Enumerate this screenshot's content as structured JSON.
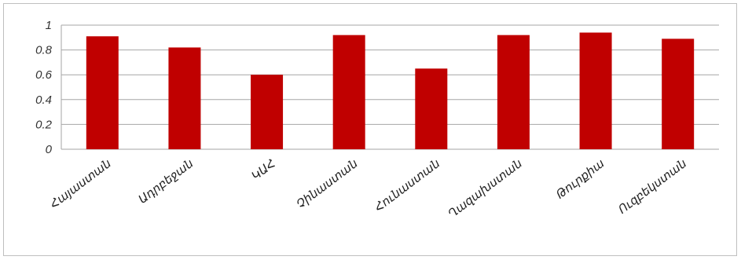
{
  "chart_data": {
    "type": "bar",
    "categories": [
      "Հայաստան",
      "Ադրբեջան",
      "ԿԱՀ",
      "Չինաստան",
      "Հունաստան",
      "Ղազախստան",
      "Թուրքիա",
      "Ուզբեկստան"
    ],
    "values": [
      0.91,
      0.82,
      0.6,
      0.92,
      0.65,
      0.92,
      0.94,
      0.89
    ],
    "ylim": [
      0,
      1
    ],
    "yticks": [
      "0",
      "0.2",
      "0.4",
      "0.6",
      "0.8",
      "1"
    ],
    "grid": true,
    "bar_color": "#c00000",
    "grid_color": "#a6a6a6"
  }
}
